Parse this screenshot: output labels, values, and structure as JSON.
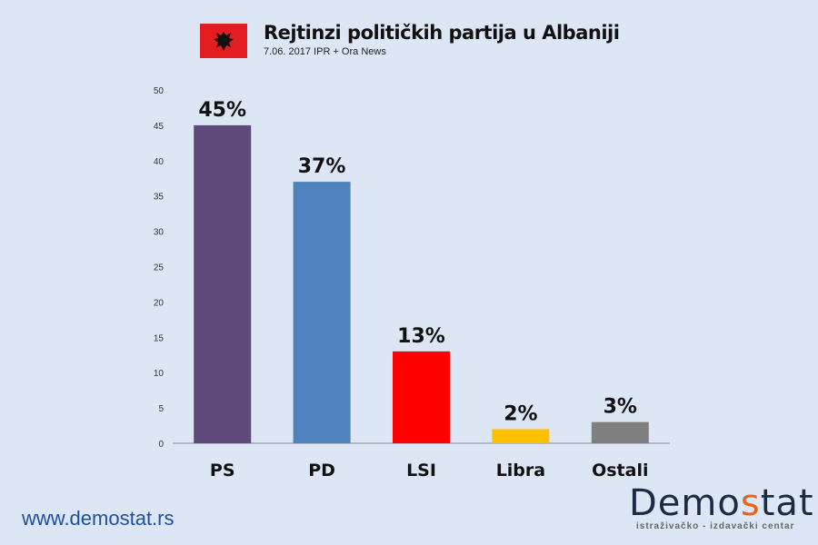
{
  "header": {
    "title": "Rejtinzi političkih partija u Albaniji",
    "subtitle": "7.06. 2017  IPR + Ora News",
    "flag_icon": "albania-flag-icon"
  },
  "footer": {
    "website": "www.demostat.rs",
    "logo_pre": "Demo",
    "logo_s": "s",
    "logo_post": "tat",
    "logo_tagline": "istraživačko - izdavački  centar"
  },
  "chart_data": {
    "type": "bar",
    "title": "Rejtinzi političkih partija u Albaniji",
    "categories": [
      "PS",
      "PD",
      "LSI",
      "Libra",
      "Ostali"
    ],
    "values": [
      45,
      37,
      13,
      2,
      3
    ],
    "data_labels": [
      "45%",
      "37%",
      "13%",
      "2%",
      "3%"
    ],
    "colors": [
      "#604a7b",
      "#4f81bd",
      "#ff0000",
      "#ffc000",
      "#7f7f7f"
    ],
    "ylim": [
      0,
      50
    ],
    "yticks": [
      0,
      5,
      10,
      15,
      20,
      25,
      30,
      35,
      40,
      45,
      50
    ],
    "grid": false,
    "xlabel": "",
    "ylabel": ""
  }
}
